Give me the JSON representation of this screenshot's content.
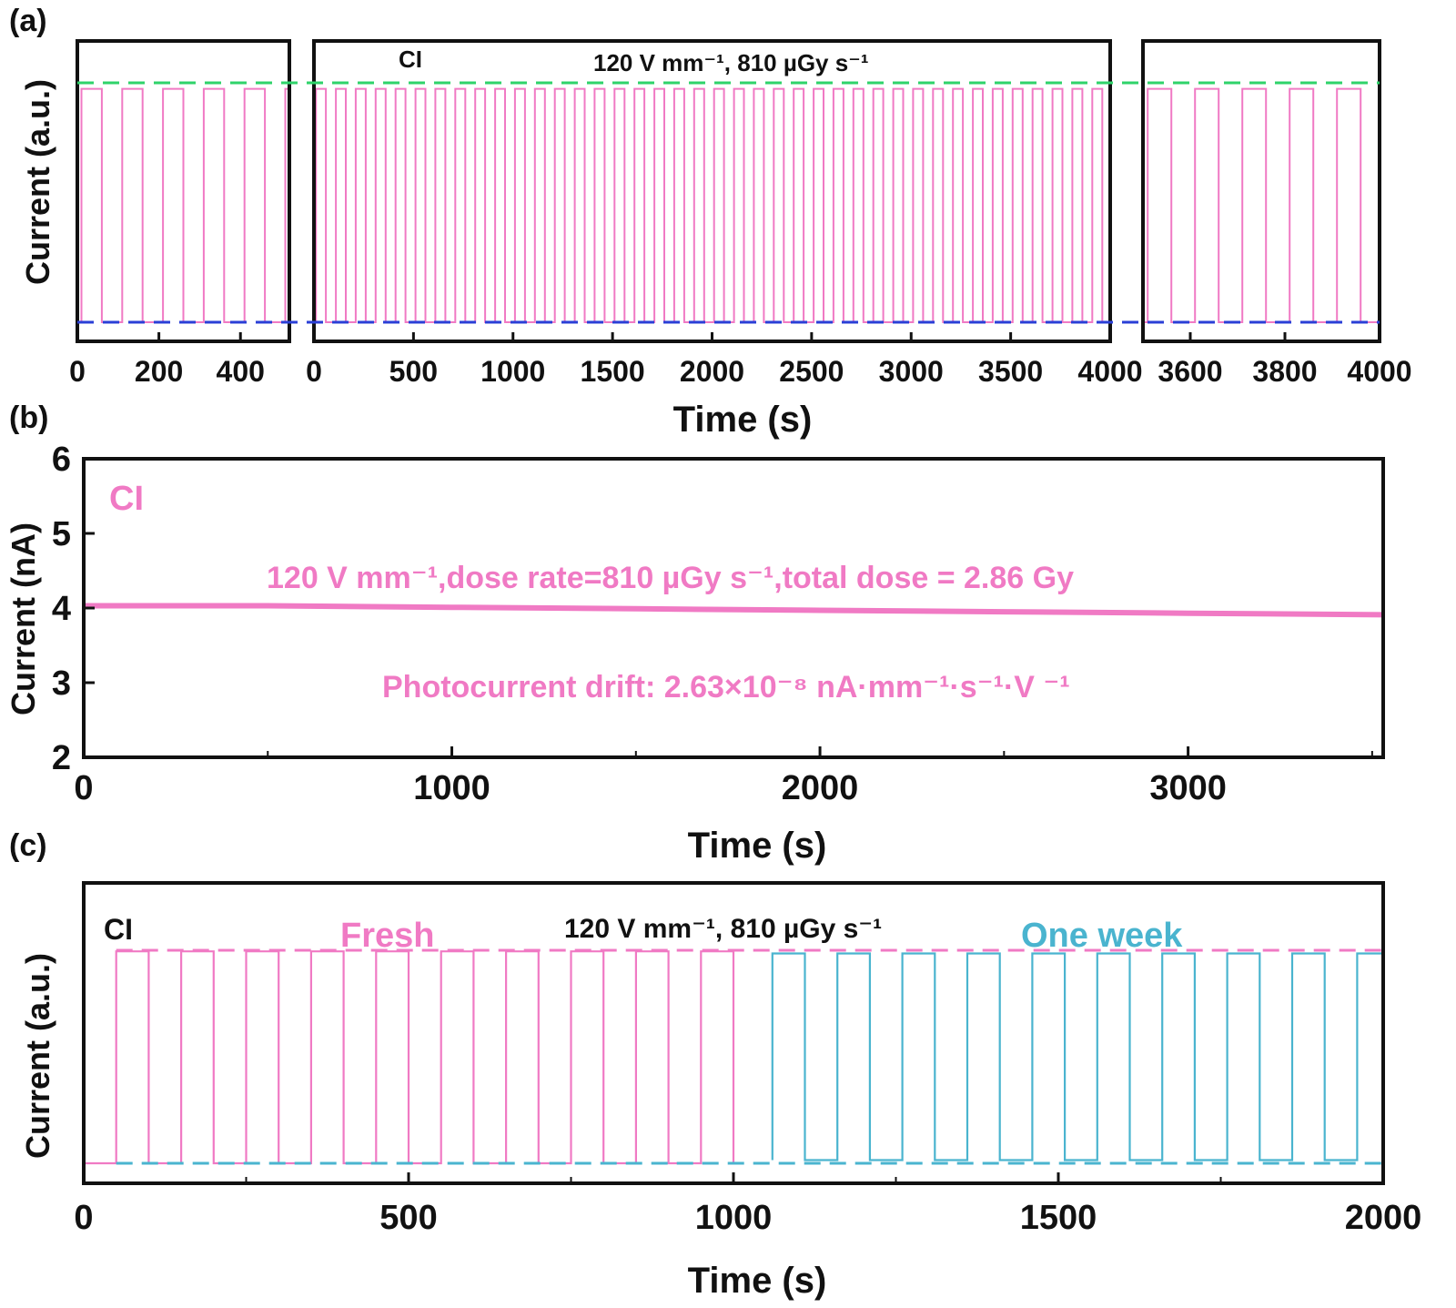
{
  "panels": {
    "a": {
      "label": "(a)"
    },
    "b": {
      "label": "(b)"
    },
    "c": {
      "label": "(c)"
    }
  },
  "colors": {
    "pink": "#f07ac4",
    "cyan": "#4ab4cf",
    "green": "#2fd36a",
    "blue": "#2a3fd6",
    "axis": "#111111"
  },
  "chart_data": [
    {
      "id": "a",
      "type": "line",
      "ylabel": "Current (a.u.)",
      "xlabel": "Time (s)",
      "annotation_label": "CI",
      "annotation_conditions": "120 V mm⁻¹, 810 µGy s⁻¹",
      "y_scale": "arbitrary units, normalized 0 (dark) to 1 (on)",
      "reference_lines": [
        {
          "name": "on level",
          "y": 1,
          "color": "#2fd36a",
          "style": "dashed"
        },
        {
          "name": "off level",
          "y": 0,
          "color": "#2a3fd6",
          "style": "dashed"
        }
      ],
      "subplots": [
        {
          "xlim": [
            0,
            520
          ],
          "xticks": [
            0,
            200,
            400
          ],
          "xtick_labels": [
            "0",
            "200",
            "400"
          ],
          "period": 100,
          "duty_on": 0.5,
          "on_level": 0.975,
          "off_level": 0.0
        },
        {
          "xlim": [
            0,
            4000
          ],
          "xticks": [
            0,
            500,
            1000,
            1500,
            2000,
            2500,
            3000,
            3500,
            4000
          ],
          "xtick_labels": [
            "0",
            "500",
            "1000",
            "1500",
            "2000",
            "2500",
            "3000",
            "3500",
            "4000"
          ],
          "period": 100,
          "duty_on": 0.5,
          "on_level": 0.975,
          "off_level": 0.0
        },
        {
          "xlim": [
            3500,
            4000
          ],
          "xticks": [
            3600,
            3800,
            4000
          ],
          "xtick_labels": [
            "3600",
            "3800",
            "4000"
          ],
          "period": 100,
          "duty_on": 0.5,
          "on_level": 0.975,
          "off_level": 0.0
        }
      ]
    },
    {
      "id": "b",
      "type": "line",
      "ylabel": "Current (nA)",
      "xlabel": "Time (s)",
      "annotation_label": "CI",
      "annotation_conditions": "120 V mm⁻¹,dose rate=810 µGy s⁻¹,total dose = 2.86 Gy",
      "annotation_drift": "Photocurrent drift: 2.63×10⁻⁸ nA·mm⁻¹·s⁻¹·V ⁻¹",
      "xlim": [
        0,
        3530
      ],
      "ylim": [
        2,
        6
      ],
      "xticks": [
        0,
        1000,
        2000,
        3000
      ],
      "yticks": [
        2,
        3,
        4,
        5,
        6
      ],
      "series": [
        {
          "color": "#f07ac4",
          "x": [
            0,
            500,
            1000,
            1500,
            2000,
            2500,
            3000,
            3530
          ],
          "y": [
            4.03,
            4.03,
            4.01,
            3.99,
            3.97,
            3.95,
            3.93,
            3.91
          ]
        }
      ]
    },
    {
      "id": "c",
      "type": "line",
      "ylabel": "Current (a.u.)",
      "xlabel": "Time (s)",
      "annotation_label": "CI",
      "annotation_conditions": "120 V mm⁻¹, 810 µGy s⁻¹",
      "xlim": [
        0,
        2000
      ],
      "xticks": [
        0,
        500,
        1000,
        1500,
        2000
      ],
      "y_scale": "arbitrary units, normalized 0 (dark) to 1 (on)",
      "reference_lines": [
        {
          "name": "on level",
          "y": 1,
          "color": "#f07ac4",
          "style": "dashed"
        },
        {
          "name": "off level",
          "y": 0,
          "color": "#4ab4cf",
          "style": "dashed"
        }
      ],
      "series": [
        {
          "name": "Fresh",
          "color": "#f07ac4",
          "x_range": [
            0,
            1000
          ],
          "first_on": 50,
          "period": 100,
          "duty_on": 0.5,
          "on_level": 0.995,
          "off_level": 0.0
        },
        {
          "name": "One week",
          "color": "#4ab4cf",
          "x_range": [
            1060,
            2000
          ],
          "first_on": 1060,
          "period": 100,
          "duty_on": 0.5,
          "on_level": 0.985,
          "off_level": 0.015
        }
      ]
    }
  ]
}
